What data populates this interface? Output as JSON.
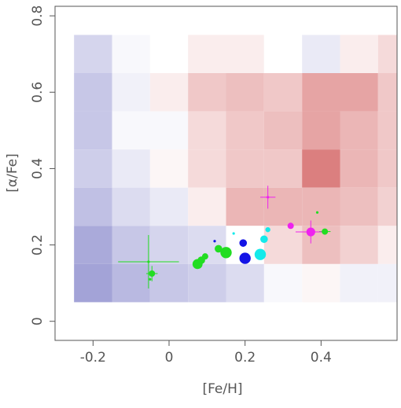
{
  "chart_data": {
    "type": "scatter",
    "x_label": "[Fe/H]",
    "y_label": "[α/Fe]",
    "xlim": [
      -0.3,
      0.6
    ],
    "ylim": [
      -0.05,
      0.825
    ],
    "xticks": [
      -0.2,
      0,
      0.2,
      0.4
    ],
    "yticks": [
      0,
      0.2,
      0.4,
      0.6,
      0.8
    ],
    "heatmap": {
      "x_edges": [
        -0.25,
        -0.15,
        -0.05,
        0.05,
        0.15,
        0.25,
        0.35,
        0.45,
        0.55,
        0.65
      ],
      "y_edges": [
        0.75,
        0.65,
        0.55,
        0.45,
        0.35,
        0.25,
        0.15,
        0.05
      ],
      "color_low": "#7272c2",
      "color_mid": "#ffffff",
      "color_high": "#cc4848",
      "values": [
        [
          -0.3,
          -0.05,
          0,
          0.1,
          0.1,
          0,
          -0.15,
          0.1,
          0.2
        ],
        [
          -0.4,
          -0.1,
          0.1,
          0.3,
          0.35,
          0.3,
          0.5,
          0.5,
          0.3
        ],
        [
          -0.4,
          -0.05,
          -0.05,
          0.2,
          0.3,
          0.35,
          0.5,
          0.4,
          0.3
        ],
        [
          -0.35,
          -0.15,
          0.05,
          0.2,
          0.3,
          0.3,
          0.7,
          0.4,
          0.3
        ],
        [
          -0.45,
          -0.25,
          -0.15,
          0.1,
          0.4,
          0.4,
          0.4,
          0.35,
          0.25
        ],
        [
          -0.6,
          -0.4,
          -0.3,
          -0.25,
          0,
          0.2,
          0.35,
          0.25,
          0.1
        ],
        [
          -0.65,
          -0.5,
          -0.4,
          -0.35,
          -0.25,
          -0.05,
          0.05,
          -0.1,
          -0.1
        ]
      ]
    },
    "series": [
      {
        "color": "#22dd22",
        "x": [
          -0.054,
          -0.045,
          -0.05,
          0.075,
          0.085,
          0.095,
          0.13,
          0.15,
          0.39,
          0.41
        ],
        "y": [
          0.156,
          0.125,
          0.11,
          0.15,
          0.16,
          0.17,
          0.19,
          0.18,
          0.285,
          0.235
        ],
        "sizes": [
          1,
          2.5,
          1,
          4,
          3,
          2.5,
          3,
          4.5,
          1,
          2.5
        ],
        "xerr": [
          0.08,
          0.015,
          null,
          null,
          null,
          null,
          null,
          null,
          null,
          0.015
        ],
        "yerr": [
          0.07,
          0.02,
          null,
          null,
          null,
          null,
          null,
          null,
          null,
          null
        ]
      },
      {
        "color": "#1414e6",
        "x": [
          0.12,
          0.195,
          0.2
        ],
        "y": [
          0.21,
          0.205,
          0.165
        ],
        "sizes": [
          1,
          3,
          4.5
        ],
        "xerr": [
          null,
          null,
          null
        ],
        "yerr": [
          null,
          null,
          null
        ]
      },
      {
        "color": "#14eaea",
        "x": [
          0.17,
          0.24,
          0.25,
          0.26
        ],
        "y": [
          0.23,
          0.175,
          0.215,
          0.24
        ],
        "sizes": [
          1,
          4.5,
          3,
          2
        ],
        "xerr": [
          null,
          null,
          null,
          null
        ],
        "yerr": [
          null,
          null,
          null,
          null
        ]
      },
      {
        "color": "#ee22ee",
        "x": [
          0.26,
          0.32,
          0.373
        ],
        "y": [
          0.325,
          0.25,
          0.234
        ],
        "sizes": [
          1,
          2.5,
          3.5
        ],
        "xerr": [
          0.02,
          null,
          0.04
        ],
        "yerr": [
          0.03,
          null,
          0.03
        ]
      }
    ]
  }
}
